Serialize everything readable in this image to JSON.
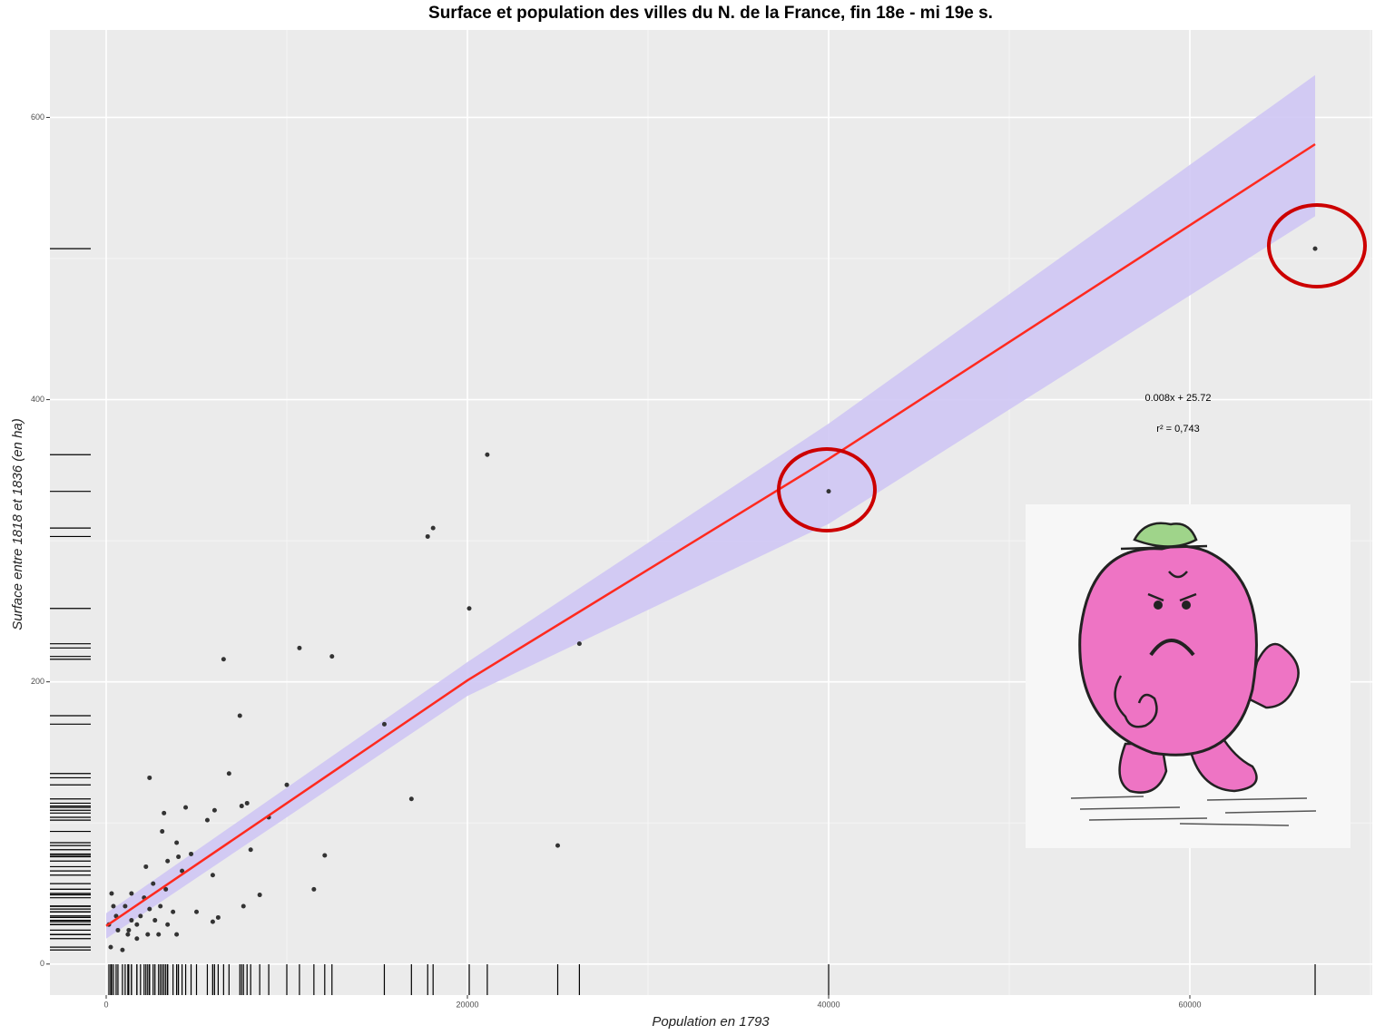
{
  "chart_data": {
    "type": "scatter",
    "title": "Surface et population des villes du N. de la France, fin 18e - mi 19e s.",
    "x_label": "Population en 1793",
    "y_label": "Surface entre 1818 et 1836 (en ha)",
    "annotations": [
      "0.008x + 25.72",
      "r² = 0,743"
    ],
    "color": "#333333",
    "grid": true,
    "rug": true,
    "xlim": [
      -3116,
      70100
    ],
    "ylim": [
      -22,
      662
    ],
    "xticks": [
      0,
      20000,
      40000,
      60000
    ],
    "yticks": [
      0,
      200,
      400,
      600
    ],
    "x": [
      66935,
      40000,
      21100,
      17800,
      18100,
      20100,
      26200,
      10700,
      12500,
      6500,
      7400,
      15400,
      16900,
      25000,
      10000,
      6800,
      2400,
      12100,
      11500,
      9000,
      7800,
      7500,
      6000,
      5600,
      4400,
      3200,
      3100,
      4700,
      3900,
      4000,
      8000,
      8500,
      7600,
      6200,
      5900,
      5900,
      5000,
      3900,
      3000,
      2200,
      2600,
      1400,
      300,
      250,
      900,
      1200,
      1700,
      650,
      1900,
      2400,
      2700,
      3400,
      3700,
      2900,
      1400,
      550,
      1050,
      2100,
      3300,
      4200,
      3400,
      1700,
      150,
      2300,
      400,
      1250
    ],
    "y": [
      507,
      335,
      361,
      303,
      309,
      252,
      227,
      224,
      218,
      216,
      176,
      170,
      117,
      84,
      127,
      135,
      132,
      77,
      53,
      104,
      114,
      112,
      109,
      102,
      111,
      107,
      94,
      78,
      86,
      76,
      81,
      49,
      41,
      33,
      30,
      63,
      37,
      21,
      41,
      69,
      57,
      50,
      50,
      12,
      10,
      21,
      28,
      24,
      34,
      39,
      31,
      28,
      37,
      21,
      31,
      34,
      41,
      47,
      53,
      66,
      73,
      18,
      28,
      21,
      41,
      24
    ],
    "fit": {
      "x": [
        0,
        20000,
        40000,
        66935
      ],
      "y": [
        27,
        201,
        358,
        581
      ],
      "lower": [
        18,
        190,
        312,
        530
      ],
      "upper": [
        36,
        214,
        383,
        630
      ],
      "color": "#ff2a1f",
      "band_color": "#cfc6f4"
    }
  }
}
